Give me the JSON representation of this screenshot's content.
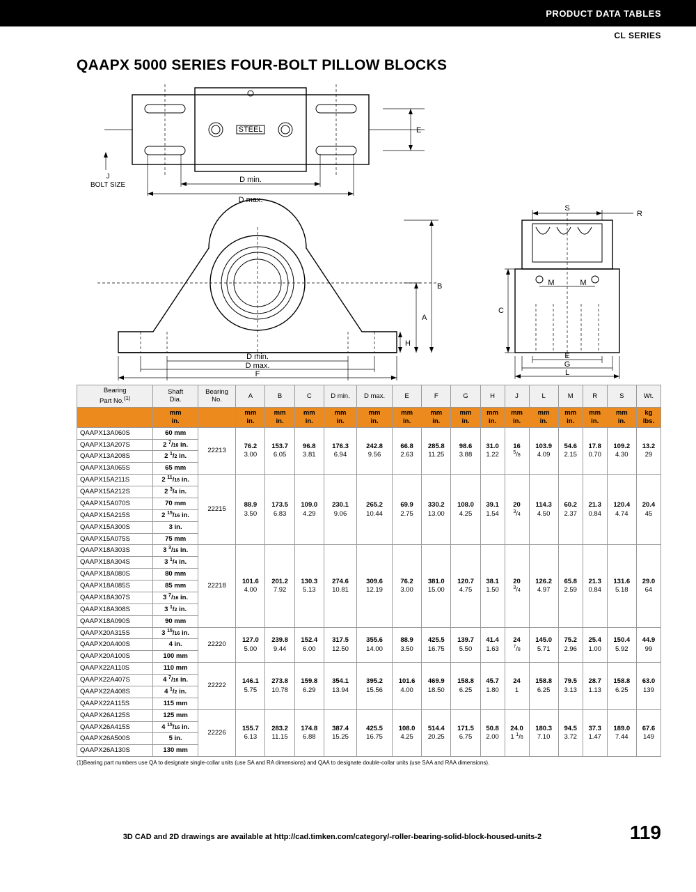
{
  "header": {
    "section": "PRODUCT DATA TABLES",
    "series": "CL SERIES"
  },
  "title": "QAAPX 5000 SERIES FOUR-BOLT PILLOW BLOCKS",
  "diagram": {
    "bolt_label_j": "J",
    "bolt_size": "BOLT SIZE",
    "dmin": "D min.",
    "dmax": "D max.",
    "E": "E",
    "B": "B",
    "A": "A",
    "H": "H",
    "F": "F",
    "S": "S",
    "R": "R",
    "M": "M",
    "C": "C",
    "G": "G",
    "L": "L",
    "steel": "STEEL"
  },
  "table": {
    "columns": [
      "Bearing\nPart No.(1)",
      "Shaft\nDia.",
      "Bearing\nNo.",
      "A",
      "B",
      "C",
      "D min.",
      "D max.",
      "E",
      "F",
      "G",
      "H",
      "J",
      "L",
      "M",
      "R",
      "S",
      "Wt."
    ],
    "unit_row": [
      "",
      "mm\nin.",
      "",
      "mm\nin.",
      "mm\nin.",
      "mm\nin.",
      "mm\nin.",
      "mm\nin.",
      "mm\nin.",
      "mm\nin.",
      "mm\nin.",
      "mm\nin.",
      "mm\nin.",
      "mm\nin.",
      "mm\nin.",
      "mm\nin.",
      "mm\nin.",
      "kg\nlbs."
    ],
    "groups": [
      {
        "parts": [
          {
            "pn": "QAAPX13A060S",
            "shaft": "60 mm"
          },
          {
            "pn": "QAAPX13A207S",
            "shaft": "2 7/16 in."
          },
          {
            "pn": "QAAPX13A208S",
            "shaft": "2 1/2 in."
          },
          {
            "pn": "QAAPX13A065S",
            "shaft": "65 mm"
          }
        ],
        "brg": "22213",
        "vals": [
          [
            "76.2",
            "3.00"
          ],
          [
            "153.7",
            "6.05"
          ],
          [
            "96.8",
            "3.81"
          ],
          [
            "176.3",
            "6.94"
          ],
          [
            "242.8",
            "9.56"
          ],
          [
            "66.8",
            "2.63"
          ],
          [
            "285.8",
            "11.25"
          ],
          [
            "98.6",
            "3.88"
          ],
          [
            "31.0",
            "1.22"
          ],
          [
            "16",
            "5/8"
          ],
          [
            "103.9",
            "4.09"
          ],
          [
            "54.6",
            "2.15"
          ],
          [
            "17.8",
            "0.70"
          ],
          [
            "109.2",
            "4.30"
          ],
          [
            "13.2",
            "29"
          ]
        ]
      },
      {
        "parts": [
          {
            "pn": "QAAPX15A211S",
            "shaft": "2 11/16 in."
          },
          {
            "pn": "QAAPX15A212S",
            "shaft": "2 3/4 in."
          },
          {
            "pn": "QAAPX15A070S",
            "shaft": "70 mm"
          },
          {
            "pn": "QAAPX15A215S",
            "shaft": "2 15/16 in."
          },
          {
            "pn": "QAAPX15A300S",
            "shaft": "3 in."
          },
          {
            "pn": "QAAPX15A075S",
            "shaft": "75 mm"
          }
        ],
        "brg": "22215",
        "vals": [
          [
            "88.9",
            "3.50"
          ],
          [
            "173.5",
            "6.83"
          ],
          [
            "109.0",
            "4.29"
          ],
          [
            "230.1",
            "9.06"
          ],
          [
            "265.2",
            "10.44"
          ],
          [
            "69.9",
            "2.75"
          ],
          [
            "330.2",
            "13.00"
          ],
          [
            "108.0",
            "4.25"
          ],
          [
            "39.1",
            "1.54"
          ],
          [
            "20",
            "3/4"
          ],
          [
            "114.3",
            "4.50"
          ],
          [
            "60.2",
            "2.37"
          ],
          [
            "21.3",
            "0.84"
          ],
          [
            "120.4",
            "4.74"
          ],
          [
            "20.4",
            "45"
          ]
        ]
      },
      {
        "parts": [
          {
            "pn": "QAAPX18A303S",
            "shaft": "3 3/16 in."
          },
          {
            "pn": "QAAPX18A304S",
            "shaft": "3 1/4 in."
          },
          {
            "pn": "QAAPX18A080S",
            "shaft": "80 mm"
          },
          {
            "pn": "QAAPX18A085S",
            "shaft": "85 mm"
          },
          {
            "pn": "QAAPX18A307S",
            "shaft": "3 7/16 in."
          },
          {
            "pn": "QAAPX18A308S",
            "shaft": "3 1/2 in."
          },
          {
            "pn": "QAAPX18A090S",
            "shaft": "90 mm"
          }
        ],
        "brg": "22218",
        "vals": [
          [
            "101.6",
            "4.00"
          ],
          [
            "201.2",
            "7.92"
          ],
          [
            "130.3",
            "5.13"
          ],
          [
            "274.6",
            "10.81"
          ],
          [
            "309.6",
            "12.19"
          ],
          [
            "76.2",
            "3.00"
          ],
          [
            "381.0",
            "15.00"
          ],
          [
            "120.7",
            "4.75"
          ],
          [
            "38.1",
            "1.50"
          ],
          [
            "20",
            "3/4"
          ],
          [
            "126.2",
            "4.97"
          ],
          [
            "65.8",
            "2.59"
          ],
          [
            "21.3",
            "0.84"
          ],
          [
            "131.6",
            "5.18"
          ],
          [
            "29.0",
            "64"
          ]
        ]
      },
      {
        "parts": [
          {
            "pn": "QAAPX20A315S",
            "shaft": "3 15/16 in."
          },
          {
            "pn": "QAAPX20A400S",
            "shaft": "4 in."
          },
          {
            "pn": "QAAPX20A100S",
            "shaft": "100 mm"
          }
        ],
        "brg": "22220",
        "vals": [
          [
            "127.0",
            "5.00"
          ],
          [
            "239.8",
            "9.44"
          ],
          [
            "152.4",
            "6.00"
          ],
          [
            "317.5",
            "12.50"
          ],
          [
            "355.6",
            "14.00"
          ],
          [
            "88.9",
            "3.50"
          ],
          [
            "425.5",
            "16.75"
          ],
          [
            "139.7",
            "5.50"
          ],
          [
            "41.4",
            "1.63"
          ],
          [
            "24",
            "7/8"
          ],
          [
            "145.0",
            "5.71"
          ],
          [
            "75.2",
            "2.96"
          ],
          [
            "25.4",
            "1.00"
          ],
          [
            "150.4",
            "5.92"
          ],
          [
            "44.9",
            "99"
          ]
        ]
      },
      {
        "parts": [
          {
            "pn": "QAAPX22A110S",
            "shaft": "110 mm"
          },
          {
            "pn": "QAAPX22A407S",
            "shaft": "4 7/16 in."
          },
          {
            "pn": "QAAPX22A408S",
            "shaft": "4 1/2 in."
          },
          {
            "pn": "QAAPX22A115S",
            "shaft": "115 mm"
          }
        ],
        "brg": "22222",
        "vals": [
          [
            "146.1",
            "5.75"
          ],
          [
            "273.8",
            "10.78"
          ],
          [
            "159.8",
            "6.29"
          ],
          [
            "354.1",
            "13.94"
          ],
          [
            "395.2",
            "15.56"
          ],
          [
            "101.6",
            "4.00"
          ],
          [
            "469.9",
            "18.50"
          ],
          [
            "158.8",
            "6.25"
          ],
          [
            "45.7",
            "1.80"
          ],
          [
            "24",
            "1"
          ],
          [
            "158.8",
            "6.25"
          ],
          [
            "79.5",
            "3.13"
          ],
          [
            "28.7",
            "1.13"
          ],
          [
            "158.8",
            "6.25"
          ],
          [
            "63.0",
            "139"
          ]
        ]
      },
      {
        "parts": [
          {
            "pn": "QAAPX26A125S",
            "shaft": "125 mm"
          },
          {
            "pn": "QAAPX26A415S",
            "shaft": "4 15/16 in."
          },
          {
            "pn": "QAAPX26A500S",
            "shaft": "5 in."
          },
          {
            "pn": "QAAPX26A130S",
            "shaft": "130 mm"
          }
        ],
        "brg": "22226",
        "vals": [
          [
            "155.7",
            "6.13"
          ],
          [
            "283.2",
            "11.15"
          ],
          [
            "174.8",
            "6.88"
          ],
          [
            "387.4",
            "15.25"
          ],
          [
            "425.5",
            "16.75"
          ],
          [
            "108.0",
            "4.25"
          ],
          [
            "514.4",
            "20.25"
          ],
          [
            "171.5",
            "6.75"
          ],
          [
            "50.8",
            "2.00"
          ],
          [
            "24.0",
            "1 1/8"
          ],
          [
            "180.3",
            "7.10"
          ],
          [
            "94.5",
            "3.72"
          ],
          [
            "37.3",
            "1.47"
          ],
          [
            "189.0",
            "7.44"
          ],
          [
            "67.6",
            "149"
          ]
        ]
      }
    ]
  },
  "footnote": "(1)Bearing part numbers use QA to designate single-collar units (use SA and RA dimensions) and QAA to designate double-collar units (use SAA and RAA dimensions).",
  "footer": {
    "text": "3D CAD and 2D drawings are available at http://cad.timken.com/category/-roller-bearing-solid-block-housed-units-2",
    "page": "119"
  }
}
